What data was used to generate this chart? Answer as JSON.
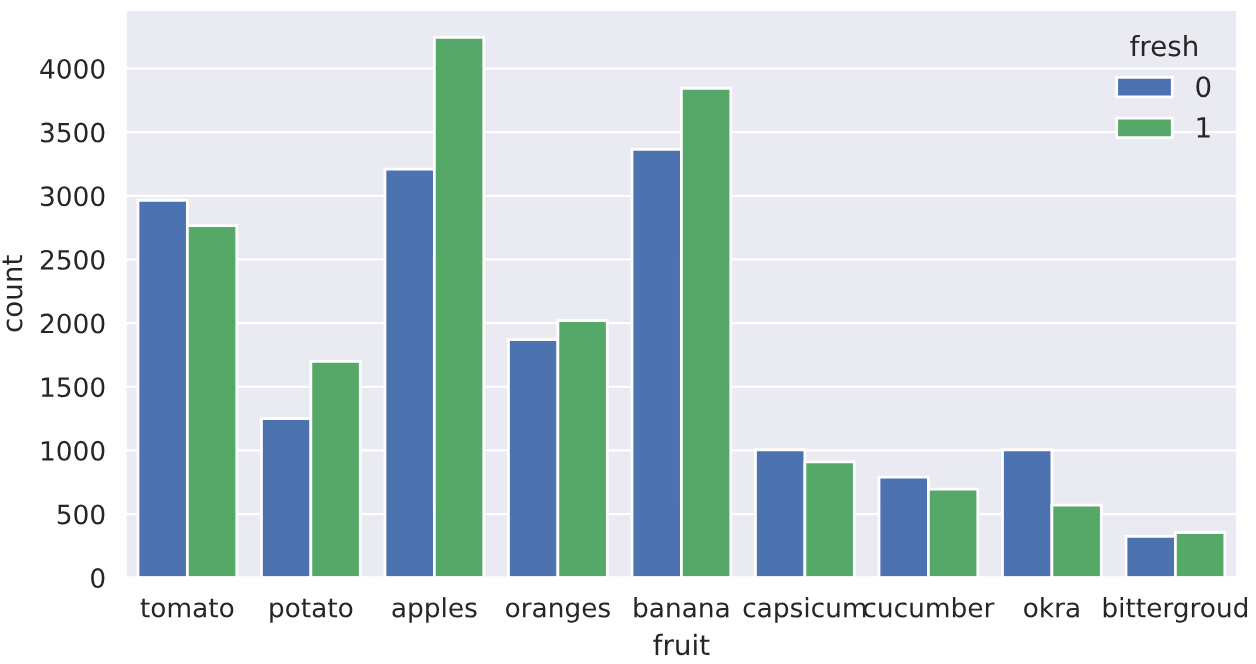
{
  "chart_data": {
    "type": "bar",
    "xlabel": "fruit",
    "ylabel": "count",
    "legend_title": "fresh",
    "categories": [
      "tomato",
      "potato",
      "apples",
      "oranges",
      "banana",
      "capsicum",
      "cucumber",
      "okra",
      "bittergroud"
    ],
    "series": [
      {
        "name": "0",
        "color": "#4c72b0",
        "values": [
          2965,
          1250,
          3210,
          1870,
          3365,
          1005,
          790,
          1005,
          325
        ]
      },
      {
        "name": "1",
        "color": "#55a868",
        "values": [
          2765,
          1700,
          4245,
          2020,
          3845,
          910,
          695,
          570,
          355
        ]
      }
    ],
    "ylim": [
      0,
      4460
    ],
    "yticks": [
      0,
      500,
      1000,
      1500,
      2000,
      2500,
      3000,
      3500,
      4000
    ],
    "grid": "y",
    "legend": "top right"
  }
}
